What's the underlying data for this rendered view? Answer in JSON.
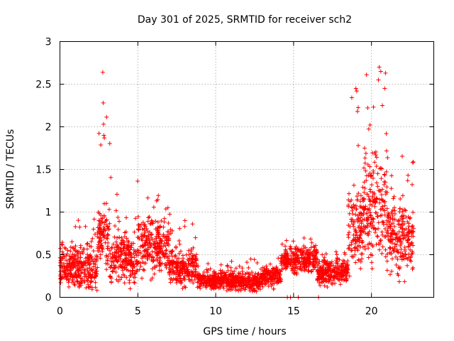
{
  "chart_data": {
    "type": "scatter",
    "title": "Day 301 of 2025, SRMTID for receiver sch2",
    "xlabel": "GPS time / hours",
    "ylabel": "SRMTID / TECUs",
    "xlim": [
      0,
      24
    ],
    "ylim": [
      0,
      3
    ],
    "xticks": [
      0,
      5,
      10,
      15,
      20
    ],
    "xtick_labels": [
      "0",
      "5",
      "10",
      "15",
      "20"
    ],
    "yticks": [
      0,
      0.5,
      1,
      1.5,
      2,
      2.5,
      3
    ],
    "ytick_labels": [
      "0",
      "0.5",
      "1",
      "1.5",
      "2",
      "2.5",
      "3"
    ],
    "grid": true,
    "legend": "none",
    "marker": "plus",
    "color": "#ff0000",
    "series": [
      {
        "name": "SRMTID",
        "segments": [
          {
            "x_range": [
              0.0,
              2.4
            ],
            "median": 0.35,
            "spread": 0.25,
            "max": 1.05
          },
          {
            "x_range": [
              2.4,
              3.2
            ],
            "median": 0.7,
            "spread": 0.35,
            "max": 2.64
          },
          {
            "x_range": [
              3.2,
              5.0
            ],
            "median": 0.45,
            "spread": 0.25,
            "max": 1.45
          },
          {
            "x_range": [
              5.0,
              7.0
            ],
            "median": 0.6,
            "spread": 0.3,
            "max": 1.25
          },
          {
            "x_range": [
              7.0,
              8.8
            ],
            "median": 0.35,
            "spread": 0.2,
            "max": 1.0
          },
          {
            "x_range": [
              8.8,
              11.0
            ],
            "median": 0.2,
            "spread": 0.1,
            "max": 0.4
          },
          {
            "x_range": [
              11.0,
              13.0
            ],
            "median": 0.18,
            "spread": 0.1,
            "max": 0.45
          },
          {
            "x_range": [
              13.0,
              14.2
            ],
            "median": 0.25,
            "spread": 0.12,
            "max": 0.5
          },
          {
            "x_range": [
              14.2,
              16.5
            ],
            "median": 0.45,
            "spread": 0.15,
            "max": 0.7
          },
          {
            "x_range": [
              16.5,
              18.5
            ],
            "median": 0.3,
            "spread": 0.15,
            "max": 0.55
          },
          {
            "x_range": [
              18.5,
              19.5
            ],
            "median": 0.8,
            "spread": 0.5,
            "max": 2.45
          },
          {
            "x_range": [
              19.5,
              21.0
            ],
            "median": 1.0,
            "spread": 0.6,
            "max": 2.7
          },
          {
            "x_range": [
              21.0,
              22.7
            ],
            "median": 0.7,
            "spread": 0.4,
            "max": 1.72
          }
        ],
        "zero_points_x": [
          14.6,
          14.8,
          15.3,
          16.6
        ],
        "highlights": [
          {
            "x": 2.75,
            "y": 2.64
          },
          {
            "x": 2.78,
            "y": 2.28
          },
          {
            "x": 2.8,
            "y": 2.03
          },
          {
            "x": 2.82,
            "y": 1.9
          },
          {
            "x": 2.85,
            "y": 1.87
          },
          {
            "x": 19.0,
            "y": 2.45
          },
          {
            "x": 19.05,
            "y": 2.42
          },
          {
            "x": 19.1,
            "y": 2.18
          },
          {
            "x": 19.15,
            "y": 1.78
          },
          {
            "x": 20.5,
            "y": 2.7
          },
          {
            "x": 20.6,
            "y": 2.65
          },
          {
            "x": 20.45,
            "y": 2.55
          },
          {
            "x": 20.9,
            "y": 2.63
          },
          {
            "x": 20.85,
            "y": 2.45
          },
          {
            "x": 20.7,
            "y": 2.25
          },
          {
            "x": 20.95,
            "y": 1.92
          },
          {
            "x": 22.65,
            "y": 1.58
          }
        ]
      }
    ]
  }
}
